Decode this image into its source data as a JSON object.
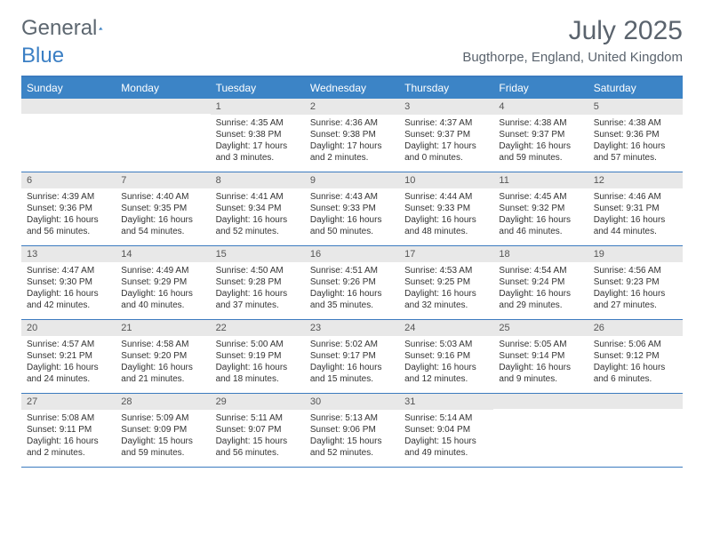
{
  "logo": {
    "text1": "General",
    "text2": "Blue"
  },
  "title": "July 2025",
  "location": "Bugthorpe, England, United Kingdom",
  "colors": {
    "header_bg": "#3c84c6",
    "header_border": "#3c7bbf",
    "daynum_bg": "#e8e8e8",
    "title_color": "#5a636d",
    "logo_gray": "#5d6770",
    "logo_blue": "#3b7fc4"
  },
  "day_headers": [
    "Sunday",
    "Monday",
    "Tuesday",
    "Wednesday",
    "Thursday",
    "Friday",
    "Saturday"
  ],
  "weeks": [
    [
      {
        "day": "",
        "sunrise": "",
        "sunset": "",
        "daylight": ""
      },
      {
        "day": "",
        "sunrise": "",
        "sunset": "",
        "daylight": ""
      },
      {
        "day": "1",
        "sunrise": "Sunrise: 4:35 AM",
        "sunset": "Sunset: 9:38 PM",
        "daylight": "Daylight: 17 hours and 3 minutes."
      },
      {
        "day": "2",
        "sunrise": "Sunrise: 4:36 AM",
        "sunset": "Sunset: 9:38 PM",
        "daylight": "Daylight: 17 hours and 2 minutes."
      },
      {
        "day": "3",
        "sunrise": "Sunrise: 4:37 AM",
        "sunset": "Sunset: 9:37 PM",
        "daylight": "Daylight: 17 hours and 0 minutes."
      },
      {
        "day": "4",
        "sunrise": "Sunrise: 4:38 AM",
        "sunset": "Sunset: 9:37 PM",
        "daylight": "Daylight: 16 hours and 59 minutes."
      },
      {
        "day": "5",
        "sunrise": "Sunrise: 4:38 AM",
        "sunset": "Sunset: 9:36 PM",
        "daylight": "Daylight: 16 hours and 57 minutes."
      }
    ],
    [
      {
        "day": "6",
        "sunrise": "Sunrise: 4:39 AM",
        "sunset": "Sunset: 9:36 PM",
        "daylight": "Daylight: 16 hours and 56 minutes."
      },
      {
        "day": "7",
        "sunrise": "Sunrise: 4:40 AM",
        "sunset": "Sunset: 9:35 PM",
        "daylight": "Daylight: 16 hours and 54 minutes."
      },
      {
        "day": "8",
        "sunrise": "Sunrise: 4:41 AM",
        "sunset": "Sunset: 9:34 PM",
        "daylight": "Daylight: 16 hours and 52 minutes."
      },
      {
        "day": "9",
        "sunrise": "Sunrise: 4:43 AM",
        "sunset": "Sunset: 9:33 PM",
        "daylight": "Daylight: 16 hours and 50 minutes."
      },
      {
        "day": "10",
        "sunrise": "Sunrise: 4:44 AM",
        "sunset": "Sunset: 9:33 PM",
        "daylight": "Daylight: 16 hours and 48 minutes."
      },
      {
        "day": "11",
        "sunrise": "Sunrise: 4:45 AM",
        "sunset": "Sunset: 9:32 PM",
        "daylight": "Daylight: 16 hours and 46 minutes."
      },
      {
        "day": "12",
        "sunrise": "Sunrise: 4:46 AM",
        "sunset": "Sunset: 9:31 PM",
        "daylight": "Daylight: 16 hours and 44 minutes."
      }
    ],
    [
      {
        "day": "13",
        "sunrise": "Sunrise: 4:47 AM",
        "sunset": "Sunset: 9:30 PM",
        "daylight": "Daylight: 16 hours and 42 minutes."
      },
      {
        "day": "14",
        "sunrise": "Sunrise: 4:49 AM",
        "sunset": "Sunset: 9:29 PM",
        "daylight": "Daylight: 16 hours and 40 minutes."
      },
      {
        "day": "15",
        "sunrise": "Sunrise: 4:50 AM",
        "sunset": "Sunset: 9:28 PM",
        "daylight": "Daylight: 16 hours and 37 minutes."
      },
      {
        "day": "16",
        "sunrise": "Sunrise: 4:51 AM",
        "sunset": "Sunset: 9:26 PM",
        "daylight": "Daylight: 16 hours and 35 minutes."
      },
      {
        "day": "17",
        "sunrise": "Sunrise: 4:53 AM",
        "sunset": "Sunset: 9:25 PM",
        "daylight": "Daylight: 16 hours and 32 minutes."
      },
      {
        "day": "18",
        "sunrise": "Sunrise: 4:54 AM",
        "sunset": "Sunset: 9:24 PM",
        "daylight": "Daylight: 16 hours and 29 minutes."
      },
      {
        "day": "19",
        "sunrise": "Sunrise: 4:56 AM",
        "sunset": "Sunset: 9:23 PM",
        "daylight": "Daylight: 16 hours and 27 minutes."
      }
    ],
    [
      {
        "day": "20",
        "sunrise": "Sunrise: 4:57 AM",
        "sunset": "Sunset: 9:21 PM",
        "daylight": "Daylight: 16 hours and 24 minutes."
      },
      {
        "day": "21",
        "sunrise": "Sunrise: 4:58 AM",
        "sunset": "Sunset: 9:20 PM",
        "daylight": "Daylight: 16 hours and 21 minutes."
      },
      {
        "day": "22",
        "sunrise": "Sunrise: 5:00 AM",
        "sunset": "Sunset: 9:19 PM",
        "daylight": "Daylight: 16 hours and 18 minutes."
      },
      {
        "day": "23",
        "sunrise": "Sunrise: 5:02 AM",
        "sunset": "Sunset: 9:17 PM",
        "daylight": "Daylight: 16 hours and 15 minutes."
      },
      {
        "day": "24",
        "sunrise": "Sunrise: 5:03 AM",
        "sunset": "Sunset: 9:16 PM",
        "daylight": "Daylight: 16 hours and 12 minutes."
      },
      {
        "day": "25",
        "sunrise": "Sunrise: 5:05 AM",
        "sunset": "Sunset: 9:14 PM",
        "daylight": "Daylight: 16 hours and 9 minutes."
      },
      {
        "day": "26",
        "sunrise": "Sunrise: 5:06 AM",
        "sunset": "Sunset: 9:12 PM",
        "daylight": "Daylight: 16 hours and 6 minutes."
      }
    ],
    [
      {
        "day": "27",
        "sunrise": "Sunrise: 5:08 AM",
        "sunset": "Sunset: 9:11 PM",
        "daylight": "Daylight: 16 hours and 2 minutes."
      },
      {
        "day": "28",
        "sunrise": "Sunrise: 5:09 AM",
        "sunset": "Sunset: 9:09 PM",
        "daylight": "Daylight: 15 hours and 59 minutes."
      },
      {
        "day": "29",
        "sunrise": "Sunrise: 5:11 AM",
        "sunset": "Sunset: 9:07 PM",
        "daylight": "Daylight: 15 hours and 56 minutes."
      },
      {
        "day": "30",
        "sunrise": "Sunrise: 5:13 AM",
        "sunset": "Sunset: 9:06 PM",
        "daylight": "Daylight: 15 hours and 52 minutes."
      },
      {
        "day": "31",
        "sunrise": "Sunrise: 5:14 AM",
        "sunset": "Sunset: 9:04 PM",
        "daylight": "Daylight: 15 hours and 49 minutes."
      },
      {
        "day": "",
        "sunrise": "",
        "sunset": "",
        "daylight": ""
      },
      {
        "day": "",
        "sunrise": "",
        "sunset": "",
        "daylight": ""
      }
    ]
  ]
}
